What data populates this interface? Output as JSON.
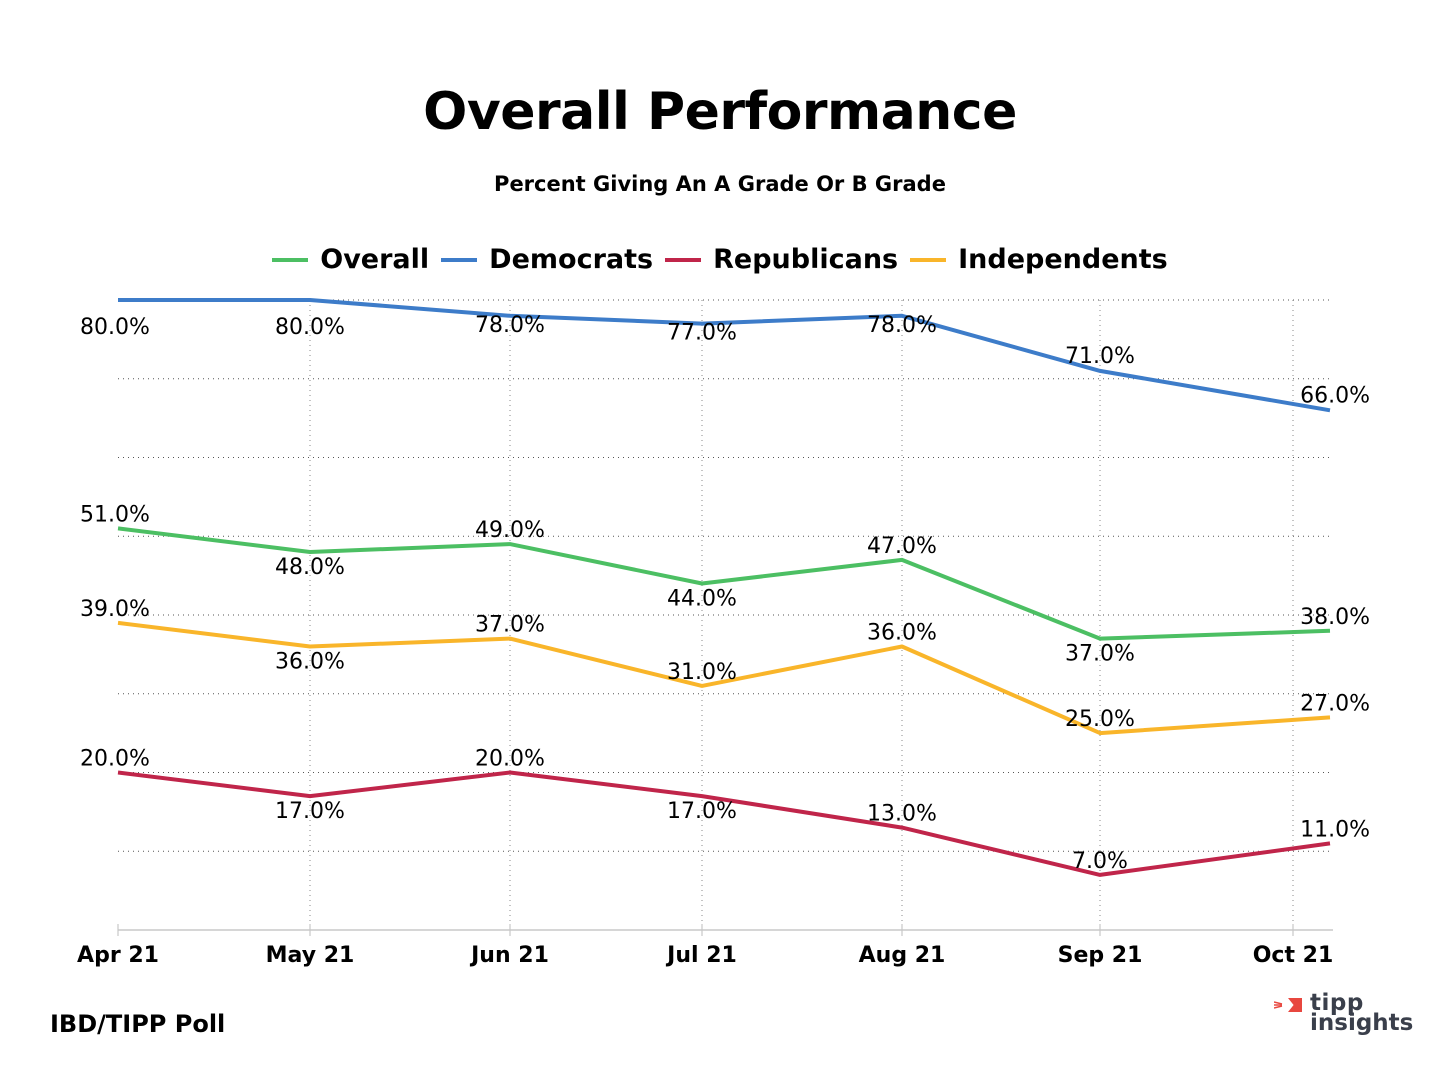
{
  "chart_data": {
    "type": "line",
    "title": "Overall Performance",
    "subtitle": "Percent Giving An A Grade Or B Grade",
    "xlabel": "",
    "ylabel": "",
    "categories": [
      "Apr 21",
      "May 21",
      "Jun 21",
      "Jul 21",
      "Aug 21",
      "Sep 21",
      "Oct 21"
    ],
    "ylim": [
      0,
      80
    ],
    "grid": true,
    "legend_position": "top",
    "series": [
      {
        "name": "Overall",
        "color": "#4cbf63",
        "values": [
          51.0,
          48.0,
          49.0,
          44.0,
          47.0,
          37.0,
          38.0
        ],
        "labels": [
          "51.0%",
          "48.0%",
          "49.0%",
          "44.0%",
          "47.0%",
          "37.0%",
          "38.0%"
        ]
      },
      {
        "name": "Democrats",
        "color": "#3d7cc9",
        "values": [
          80.0,
          80.0,
          78.0,
          77.0,
          78.0,
          71.0,
          66.0
        ],
        "labels": [
          "80.0%",
          "80.0%",
          "78.0%",
          "77.0%",
          "78.0%",
          "71.0%",
          "66.0%"
        ]
      },
      {
        "name": "Republicans",
        "color": "#c0254a",
        "values": [
          20.0,
          17.0,
          20.0,
          17.0,
          13.0,
          7.0,
          11.0
        ],
        "labels": [
          "20.0%",
          "17.0%",
          "20.0%",
          "17.0%",
          "13.0%",
          "7.0%",
          "11.0%"
        ]
      },
      {
        "name": "Independents",
        "color": "#f9b52a",
        "values": [
          39.0,
          36.0,
          37.0,
          31.0,
          36.0,
          25.0,
          27.0
        ],
        "labels": [
          "39.0%",
          "36.0%",
          "37.0%",
          "31.0%",
          "36.0%",
          "25.0%",
          "27.0%"
        ]
      }
    ]
  },
  "footer": {
    "source": "IBD/TIPP Poll",
    "logo_line1": "tipp",
    "logo_line2": "insights",
    "logo_color": "#e8473f"
  }
}
